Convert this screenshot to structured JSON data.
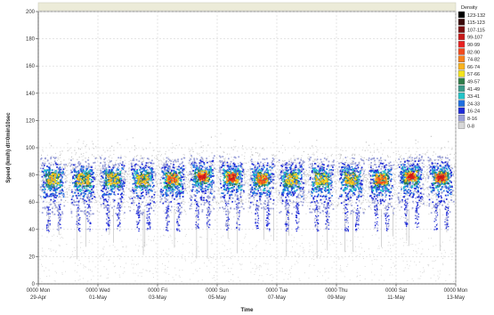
{
  "chart_data": {
    "type": "heatmap",
    "title": "",
    "xlabel": "Time",
    "ylabel": "Speed (km/h) dt=0min10sec",
    "ylim": [
      0,
      200
    ],
    "y_ticks": [
      "0",
      "20",
      "40",
      "60",
      "80",
      "100",
      "120",
      "140",
      "160",
      "180",
      "200"
    ],
    "x_ticks": [
      {
        "line1": "0000 Mon",
        "line2": "29-Apr",
        "day": 0
      },
      {
        "line1": "0000 Wed",
        "line2": "01-May",
        "day": 2
      },
      {
        "line1": "0000 Fri",
        "line2": "03-May",
        "day": 4
      },
      {
        "line1": "0000 Sun",
        "line2": "05-May",
        "day": 6
      },
      {
        "line1": "0000 Tue",
        "line2": "07-May",
        "day": 8
      },
      {
        "line1": "0000 Thu",
        "line2": "09-May",
        "day": 10
      },
      {
        "line1": "0000 Sat",
        "line2": "11-May",
        "day": 12
      },
      {
        "line1": "0000 Mon",
        "line2": "13-May",
        "day": 14
      }
    ],
    "x_range_days": [
      0,
      14
    ],
    "grid": true,
    "legend": {
      "title": "Density",
      "placement": "right",
      "bins": [
        {
          "label": "123-132",
          "color": "#000000"
        },
        {
          "label": "115-123",
          "color": "#3a0a0a"
        },
        {
          "label": "107-115",
          "color": "#7a0f10"
        },
        {
          "label": "99-107",
          "color": "#c81818"
        },
        {
          "label": "90-99",
          "color": "#e82020"
        },
        {
          "label": "82-90",
          "color": "#f24a1e"
        },
        {
          "label": "74-82",
          "color": "#f7801c"
        },
        {
          "label": "66-74",
          "color": "#f9b21e"
        },
        {
          "label": "57-66",
          "color": "#f4e41c"
        },
        {
          "label": "49-57",
          "color": "#2f7d4a"
        },
        {
          "label": "41-49",
          "color": "#3a9a8a"
        },
        {
          "label": "33-41",
          "color": "#22c4c8"
        },
        {
          "label": "24-33",
          "color": "#1f6fe0"
        },
        {
          "label": "16-24",
          "color": "#1e2ad8"
        },
        {
          "label": "8-16",
          "color": "#9aa0d8"
        },
        {
          "label": "0-8",
          "color": "#d8d8d8"
        }
      ]
    },
    "daily_peaks": [
      {
        "day_center": 0.5,
        "speed_center": 77,
        "max_density_bin": 4
      },
      {
        "day_center": 1.5,
        "speed_center": 77,
        "max_density_bin": 5
      },
      {
        "day_center": 2.5,
        "speed_center": 77,
        "max_density_bin": 5
      },
      {
        "day_center": 3.5,
        "speed_center": 77,
        "max_density_bin": 5
      },
      {
        "day_center": 4.5,
        "speed_center": 77,
        "max_density_bin": 6
      },
      {
        "day_center": 5.5,
        "speed_center": 79,
        "max_density_bin": 8
      },
      {
        "day_center": 6.5,
        "speed_center": 78,
        "max_density_bin": 8
      },
      {
        "day_center": 7.5,
        "speed_center": 77,
        "max_density_bin": 6
      },
      {
        "day_center": 8.5,
        "speed_center": 77,
        "max_density_bin": 5
      },
      {
        "day_center": 9.5,
        "speed_center": 77,
        "max_density_bin": 5
      },
      {
        "day_center": 10.5,
        "speed_center": 77,
        "max_density_bin": 5
      },
      {
        "day_center": 11.5,
        "speed_center": 77,
        "max_density_bin": 6
      },
      {
        "day_center": 12.5,
        "speed_center": 79,
        "max_density_bin": 8
      },
      {
        "day_center": 13.5,
        "speed_center": 78,
        "max_density_bin": 8
      }
    ]
  }
}
